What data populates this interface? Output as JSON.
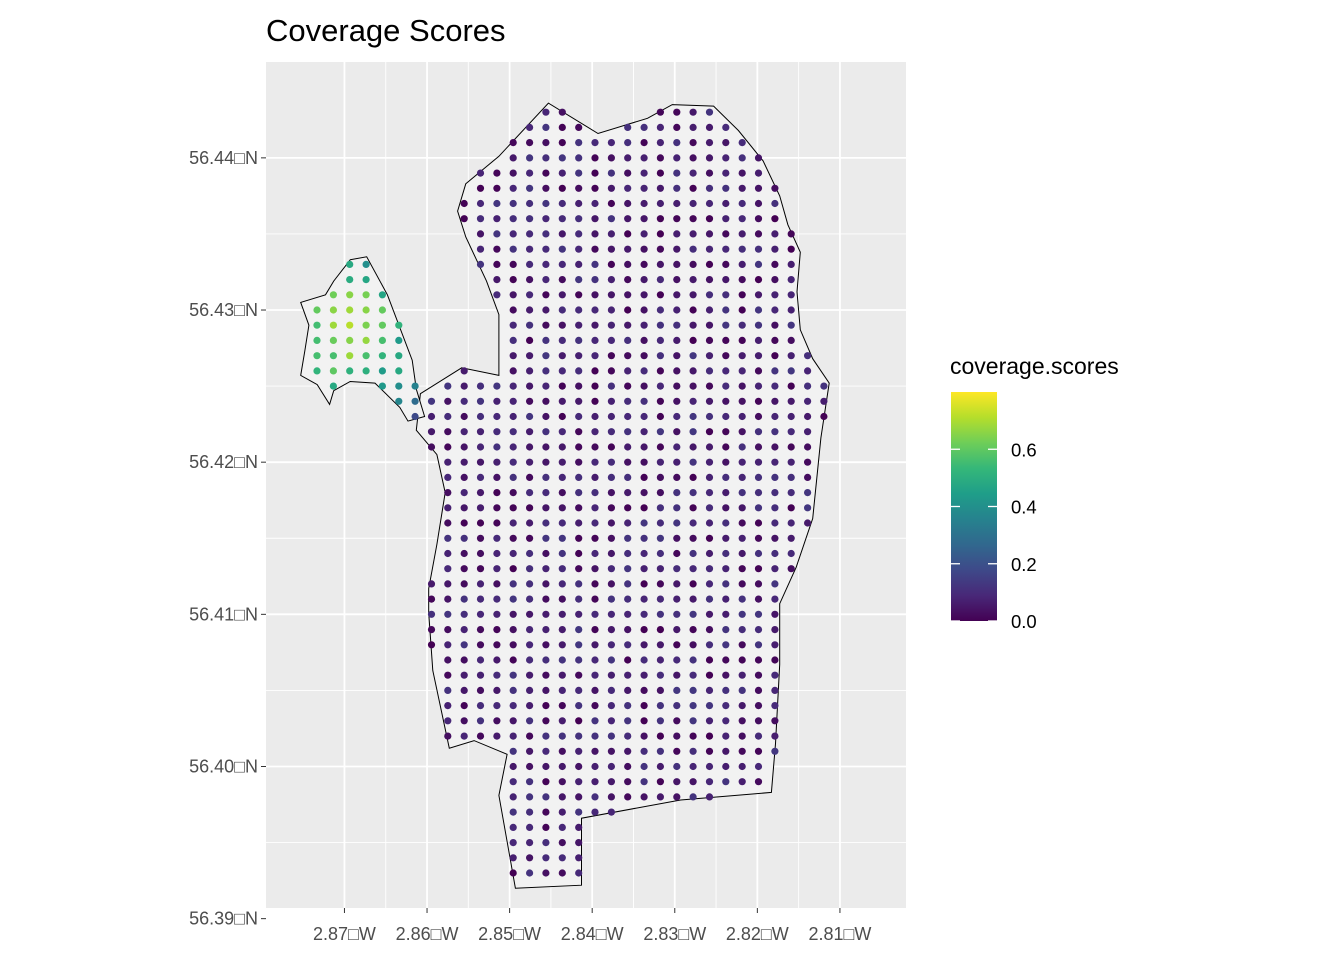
{
  "chart_data": {
    "type": "scatter",
    "title": "Coverage Scores",
    "xlabel": "",
    "ylabel": "",
    "x_ticks": [
      {
        "value": -2.87,
        "label": "2.87□W"
      },
      {
        "value": -2.86,
        "label": "2.86□W"
      },
      {
        "value": -2.85,
        "label": "2.85□W"
      },
      {
        "value": -2.84,
        "label": "2.84□W"
      },
      {
        "value": -2.83,
        "label": "2.83□W"
      },
      {
        "value": -2.82,
        "label": "2.82□W"
      },
      {
        "value": -2.81,
        "label": "2.81□W"
      }
    ],
    "y_ticks": [
      {
        "value": 56.44,
        "label": "56.44□N"
      },
      {
        "value": 56.43,
        "label": "56.43□N"
      },
      {
        "value": 56.42,
        "label": "56.42□N"
      },
      {
        "value": 56.41,
        "label": "56.41□N"
      },
      {
        "value": 56.4,
        "label": "56.40□N"
      },
      {
        "value": 56.39,
        "label": "56.39□N"
      }
    ],
    "xlim": [
      -2.8795,
      -2.802
    ],
    "ylim": [
      56.3907,
      56.4463
    ],
    "grid": true,
    "legend": {
      "title": "coverage.scores",
      "position": "right",
      "range": [
        0,
        0.8
      ],
      "breaks": [
        {
          "value": 0.0,
          "label": "0.0"
        },
        {
          "value": 0.2,
          "label": "0.2"
        },
        {
          "value": 0.4,
          "label": "0.4"
        },
        {
          "value": 0.6,
          "label": "0.6"
        }
      ],
      "palette": [
        "#440154",
        "#482878",
        "#3e4989",
        "#31688e",
        "#26828e",
        "#1f9e89",
        "#35b779",
        "#6ece58",
        "#b5de2b",
        "#fde725"
      ]
    },
    "colors": {
      "panel_background": "#ebebeb",
      "grid_line": "#ffffff",
      "boundary_fill": "#f2f2f2",
      "boundary_stroke": "#000000"
    },
    "grid_spacing": {
      "dx": 0.00198,
      "dy": 0.001
    },
    "boundary_polygons": [
      [
        [
          -2.8553,
          56.4383
        ],
        [
          -2.8513,
          56.4401
        ],
        [
          -2.8453,
          56.4436
        ],
        [
          -2.8393,
          56.4416
        ],
        [
          -2.8333,
          56.4426
        ],
        [
          -2.8303,
          56.4435
        ],
        [
          -2.8253,
          56.4434
        ],
        [
          -2.8223,
          56.4418
        ],
        [
          -2.8193,
          56.4398
        ],
        [
          -2.8173,
          56.4375
        ],
        [
          -2.8163,
          56.4356
        ],
        [
          -2.8148,
          56.4338
        ],
        [
          -2.8152,
          56.4312
        ],
        [
          -2.8148,
          56.4287
        ],
        [
          -2.8133,
          56.4268
        ],
        [
          -2.8113,
          56.4252
        ],
        [
          -2.8123,
          56.4216
        ],
        [
          -2.8133,
          56.4163
        ],
        [
          -2.8153,
          56.4131
        ],
        [
          -2.8173,
          56.4107
        ],
        [
          -2.8173,
          56.4067
        ],
        [
          -2.8178,
          56.4015
        ],
        [
          -2.8183,
          56.3983
        ],
        [
          -2.8293,
          56.3978
        ],
        [
          -2.8413,
          56.3966
        ],
        [
          -2.8413,
          56.3922
        ],
        [
          -2.8493,
          56.392
        ],
        [
          -2.8513,
          56.3981
        ],
        [
          -2.8503,
          56.4008
        ],
        [
          -2.8543,
          56.4017
        ],
        [
          -2.8573,
          56.4012
        ],
        [
          -2.8593,
          56.4063
        ],
        [
          -2.8598,
          56.4101
        ],
        [
          -2.8598,
          56.4117
        ],
        [
          -2.8588,
          56.4146
        ],
        [
          -2.8578,
          56.418
        ],
        [
          -2.8588,
          56.4205
        ],
        [
          -2.8613,
          56.4221
        ],
        [
          -2.8608,
          56.4245
        ],
        [
          -2.8558,
          56.4262
        ],
        [
          -2.8513,
          56.4257
        ],
        [
          -2.8513,
          56.4297
        ],
        [
          -2.8528,
          56.4319
        ],
        [
          -2.8553,
          56.4348
        ],
        [
          -2.8563,
          56.4365
        ]
      ],
      [
        [
          -2.8693,
          56.4333
        ],
        [
          -2.8673,
          56.4335
        ],
        [
          -2.8648,
          56.431
        ],
        [
          -2.8618,
          56.4267
        ],
        [
          -2.8613,
          56.4248
        ],
        [
          -2.8603,
          56.423
        ],
        [
          -2.8623,
          56.4227
        ],
        [
          -2.8633,
          56.4236
        ],
        [
          -2.8663,
          56.4252
        ],
        [
          -2.8693,
          56.4253
        ],
        [
          -2.8713,
          56.4247
        ],
        [
          -2.8718,
          56.4238
        ],
        [
          -2.8733,
          56.4251
        ],
        [
          -2.8753,
          56.4257
        ],
        [
          -2.8748,
          56.4273
        ],
        [
          -2.8743,
          56.429
        ],
        [
          -2.8753,
          56.4305
        ],
        [
          -2.8723,
          56.431
        ],
        [
          -2.8713,
          56.4319
        ]
      ]
    ],
    "score_model": {
      "low_range": [
        0.0,
        0.13
      ],
      "west_cluster_max": 0.8
    }
  }
}
